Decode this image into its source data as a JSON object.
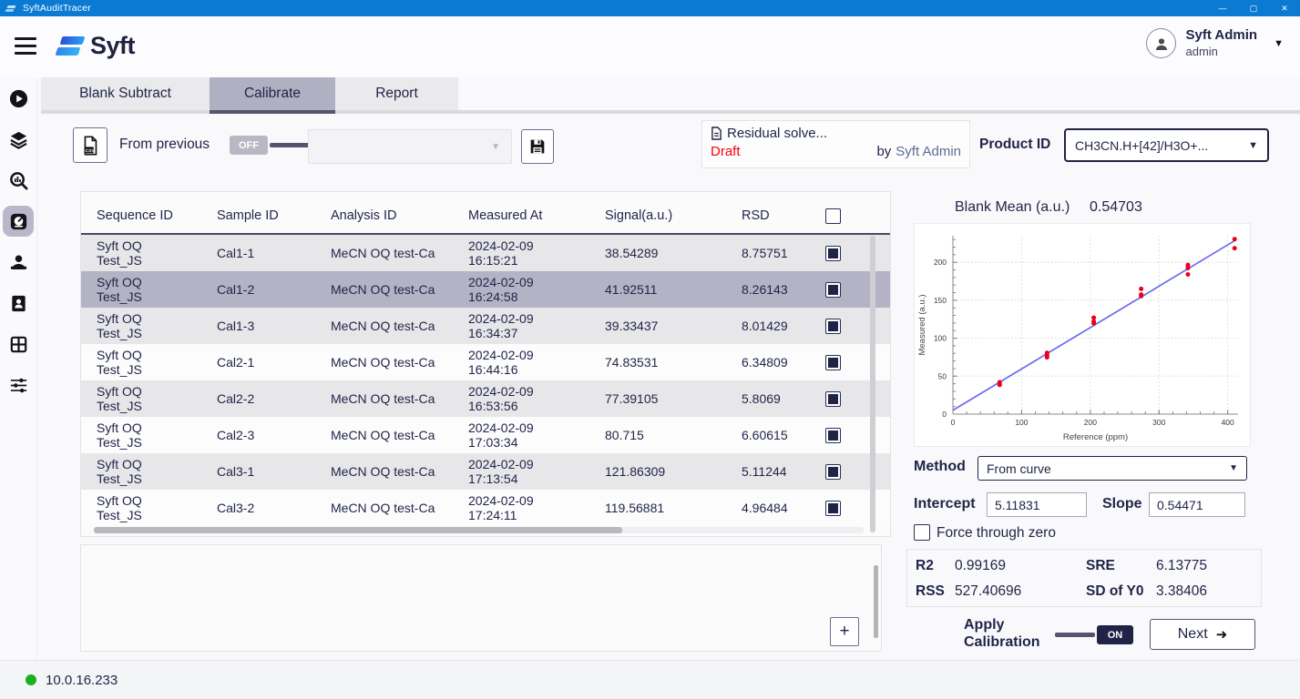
{
  "window": {
    "title": "SyftAuditTracer",
    "controls": {
      "minimize": "—",
      "maximize": "▢",
      "close": "✕"
    }
  },
  "brand": {
    "name": "Syft"
  },
  "header": {
    "user": {
      "name": "Syft Admin",
      "role": "admin"
    }
  },
  "sidebar": {
    "items": [
      {
        "name": "run"
      },
      {
        "name": "layers"
      },
      {
        "name": "search-analysis"
      },
      {
        "name": "calibration-scale",
        "active": true
      },
      {
        "name": "users"
      },
      {
        "name": "contact-card"
      },
      {
        "name": "data-table"
      },
      {
        "name": "settings-sliders"
      }
    ]
  },
  "tabs": [
    {
      "label": "Blank Subtract",
      "active": false
    },
    {
      "label": "Calibrate",
      "active": true
    },
    {
      "label": "Report",
      "active": false
    }
  ],
  "toolbar": {
    "from_previous_label": "From previous",
    "from_previous_state": "OFF",
    "previous_select_value": ""
  },
  "residual": {
    "title": "Residual solve...",
    "status": "Draft",
    "by_label": "by",
    "author": "Syft Admin"
  },
  "product": {
    "label": "Product ID",
    "value": "CH3CN.H+[42]/H3O+..."
  },
  "table": {
    "headers": [
      "Sequence ID",
      "Sample ID",
      "Analysis ID",
      "Measured At",
      "Signal(a.u.)",
      "RSD"
    ],
    "rows": [
      {
        "sequence_id": [
          "Syft OQ",
          "Test_JS"
        ],
        "sample_id": "Cal1-1",
        "analysis_id": "MeCN OQ test-Ca",
        "measured_at": [
          "2024-02-09",
          "16:15:21"
        ],
        "signal": "38.54289",
        "rsd": "8.75751",
        "checked": true,
        "shade": "gray"
      },
      {
        "sequence_id": [
          "Syft OQ",
          "Test_JS"
        ],
        "sample_id": "Cal1-2",
        "analysis_id": "MeCN OQ test-Ca",
        "measured_at": [
          "2024-02-09",
          "16:24:58"
        ],
        "signal": "41.92511",
        "rsd": "8.26143",
        "checked": true,
        "shade": "selected"
      },
      {
        "sequence_id": [
          "Syft OQ",
          "Test_JS"
        ],
        "sample_id": "Cal1-3",
        "analysis_id": "MeCN OQ test-Ca",
        "measured_at": [
          "2024-02-09",
          "16:34:37"
        ],
        "signal": "39.33437",
        "rsd": "8.01429",
        "checked": true,
        "shade": "gray"
      },
      {
        "sequence_id": [
          "Syft OQ",
          "Test_JS"
        ],
        "sample_id": "Cal2-1",
        "analysis_id": "MeCN OQ test-Ca",
        "measured_at": [
          "2024-02-09",
          "16:44:16"
        ],
        "signal": "74.83531",
        "rsd": "6.34809",
        "checked": true,
        "shade": "white"
      },
      {
        "sequence_id": [
          "Syft OQ",
          "Test_JS"
        ],
        "sample_id": "Cal2-2",
        "analysis_id": "MeCN OQ test-Ca",
        "measured_at": [
          "2024-02-09",
          "16:53:56"
        ],
        "signal": "77.39105",
        "rsd": "5.8069",
        "checked": true,
        "shade": "gray"
      },
      {
        "sequence_id": [
          "Syft OQ",
          "Test_JS"
        ],
        "sample_id": "Cal2-3",
        "analysis_id": "MeCN OQ test-Ca",
        "measured_at": [
          "2024-02-09",
          "17:03:34"
        ],
        "signal": "80.715",
        "rsd": "6.60615",
        "checked": true,
        "shade": "white"
      },
      {
        "sequence_id": [
          "Syft OQ",
          "Test_JS"
        ],
        "sample_id": "Cal3-1",
        "analysis_id": "MeCN OQ test-Ca",
        "measured_at": [
          "2024-02-09",
          "17:13:54"
        ],
        "signal": "121.86309",
        "rsd": "5.11244",
        "checked": true,
        "shade": "gray"
      },
      {
        "sequence_id": [
          "Syft OQ",
          "Test_JS"
        ],
        "sample_id": "Cal3-2",
        "analysis_id": "MeCN OQ test-Ca",
        "measured_at": [
          "2024-02-09",
          "17:24:11"
        ],
        "signal": "119.56881",
        "rsd": "4.96484",
        "checked": true,
        "shade": "white"
      }
    ]
  },
  "calibration": {
    "blank_mean_label": "Blank Mean (a.u.)",
    "blank_mean_value": "0.54703",
    "method_label": "Method",
    "method_value": "From curve",
    "intercept_label": "Intercept",
    "intercept_value": "5.11831",
    "slope_label": "Slope",
    "slope_value": "0.54471",
    "force_zero_label": "Force through zero",
    "force_zero_checked": false,
    "stats": {
      "r2_label": "R2",
      "r2": "0.99169",
      "sre_label": "SRE",
      "sre": "6.13775",
      "rss_label": "RSS",
      "rss": "527.40696",
      "sdy0_label": "SD of Y0",
      "sdy0": "3.38406"
    },
    "apply_label_line1": "Apply",
    "apply_label_line2": "Calibration",
    "apply_state": "ON",
    "next_label": "Next"
  },
  "chart_data": {
    "type": "scatter",
    "xlabel": "Reference (ppm)",
    "ylabel": "Measured (a.u.)",
    "x_range": [
      0,
      415
    ],
    "y_range": [
      0,
      235
    ],
    "x_ticks": [
      0,
      100,
      200,
      300,
      400
    ],
    "y_ticks": [
      0,
      50,
      100,
      150,
      200
    ],
    "x_minor_step": 20,
    "y_minor_step": 10,
    "grid": true,
    "points": [
      [
        68,
        38.5
      ],
      [
        68,
        39.3
      ],
      [
        68,
        41.9
      ],
      [
        137,
        74.8
      ],
      [
        137,
        77.4
      ],
      [
        137,
        80.7
      ],
      [
        205,
        119.6
      ],
      [
        205,
        121.9
      ],
      [
        205,
        127.0
      ],
      [
        274,
        155.5
      ],
      [
        274,
        157.5
      ],
      [
        274,
        165.0
      ],
      [
        342,
        184.0
      ],
      [
        342,
        192.5
      ],
      [
        342,
        196.5
      ],
      [
        410,
        218.5
      ],
      [
        410,
        230.5
      ]
    ],
    "fit": {
      "type": "linear",
      "slope": 0.54471,
      "intercept": 5.11831,
      "x_end": 412
    },
    "point_color": "#e8001d",
    "line_color": "#6b6bee"
  },
  "status_bar": {
    "ip": "10.0.16.233",
    "connection": "connected"
  },
  "icons": {
    "arrow_right": "➜",
    "caret_down": "▼",
    "plus": "+"
  },
  "colors": {
    "titlebar_blue": "#0b7ad3",
    "navy": "#1f2446",
    "draft_red": "#f50309",
    "selected_row": "#b4b2c5",
    "active_tab": "#b1afc2",
    "status_green": "#17b21c",
    "chart_point": "#e8001d",
    "chart_line": "#6b6bee"
  }
}
